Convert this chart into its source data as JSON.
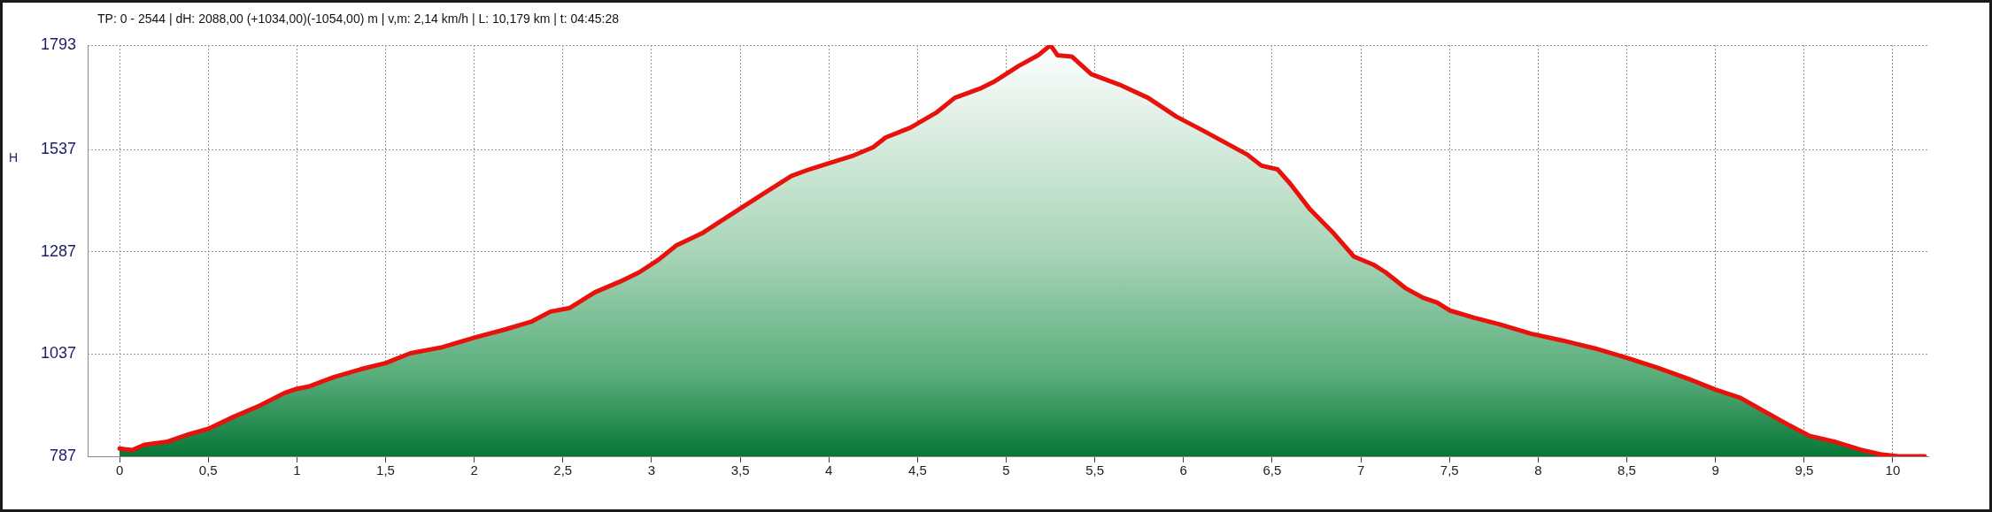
{
  "chart_data": {
    "type": "area",
    "title": "TP: 0 - 2544 | dH: 2088,00 (+1034,00)(-1054,00) m | v,m: 2,14 km/h | L: 10,179 km | t: 04:45:28",
    "ylabel": "H",
    "x": [
      0,
      0.07,
      0.14,
      0.27,
      0.39,
      0.5,
      0.64,
      0.79,
      0.93,
      1.0,
      1.07,
      1.21,
      1.36,
      1.5,
      1.64,
      1.82,
      2.0,
      2.18,
      2.32,
      2.43,
      2.54,
      2.68,
      2.82,
      2.93,
      3.04,
      3.14,
      3.29,
      3.39,
      3.5,
      3.64,
      3.79,
      3.89,
      4.0,
      4.14,
      4.25,
      4.32,
      4.46,
      4.61,
      4.71,
      4.86,
      4.93,
      5.07,
      5.18,
      5.25,
      5.29,
      5.37,
      5.48,
      5.64,
      5.8,
      5.96,
      6.11,
      6.25,
      6.36,
      6.44,
      6.53,
      6.6,
      6.71,
      6.85,
      6.96,
      7.07,
      7.14,
      7.25,
      7.35,
      7.43,
      7.5,
      7.64,
      7.78,
      7.96,
      8.14,
      8.32,
      8.5,
      8.67,
      8.85,
      9.0,
      9.14,
      9.28,
      9.42,
      9.53,
      9.67,
      9.82,
      9.93,
      10.03,
      10.18
    ],
    "series": [
      {
        "color": "#e8120c",
        "values": [
          806,
          802,
          815,
          823,
          841,
          854,
          883,
          911,
          942,
          952,
          958,
          981,
          1000,
          1015,
          1039,
          1054,
          1077,
          1098,
          1116,
          1141,
          1150,
          1188,
          1214,
          1237,
          1268,
          1303,
          1334,
          1362,
          1393,
          1432,
          1473,
          1489,
          1504,
          1523,
          1543,
          1567,
          1591,
          1629,
          1664,
          1688,
          1703,
          1742,
          1768,
          1793,
          1768,
          1765,
          1722,
          1696,
          1664,
          1618,
          1584,
          1551,
          1525,
          1498,
          1489,
          1455,
          1393,
          1331,
          1276,
          1256,
          1237,
          1199,
          1175,
          1163,
          1144,
          1126,
          1110,
          1087,
          1070,
          1051,
          1028,
          1004,
          976,
          950,
          930,
          896,
          862,
          837,
          823,
          803,
          792,
          787,
          787
        ]
      }
    ],
    "xlim": [
      -0.18,
      10.2
    ],
    "ylim": [
      787,
      1793
    ],
    "xticks": [
      0,
      {
        "value": 0.5,
        "label": "0,5"
      },
      1,
      {
        "value": 1.5,
        "label": "1,5"
      },
      2,
      {
        "value": 2.5,
        "label": "2,5"
      },
      3,
      {
        "value": 3.5,
        "label": "3,5"
      },
      4,
      {
        "value": 4.5,
        "label": "4,5"
      },
      5,
      {
        "value": 5.5,
        "label": "5,5"
      },
      6,
      {
        "value": 6.5,
        "label": "6,5"
      },
      7,
      {
        "value": 7.5,
        "label": "7,5"
      },
      8,
      {
        "value": 8.5,
        "label": "8,5"
      },
      9,
      {
        "value": 9.5,
        "label": "9,5"
      },
      10
    ],
    "yticks": [
      787,
      1037,
      1287,
      1537,
      1793
    ],
    "grid": true,
    "line_style": "solid"
  }
}
